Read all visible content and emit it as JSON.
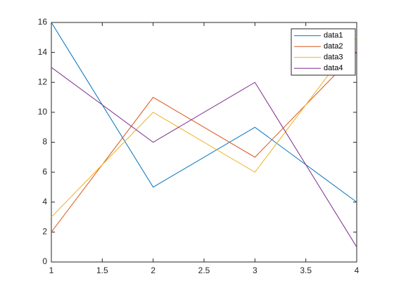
{
  "chart_data": {
    "type": "line",
    "x": [
      1,
      2,
      3,
      4
    ],
    "series": [
      {
        "name": "data1",
        "color": "#0072BD",
        "values": [
          16,
          5,
          9,
          4
        ]
      },
      {
        "name": "data2",
        "color": "#D95319",
        "values": [
          2,
          11,
          7,
          14
        ]
      },
      {
        "name": "data3",
        "color": "#EDB120",
        "values": [
          3,
          10,
          6,
          15
        ]
      },
      {
        "name": "data4",
        "color": "#7E2F8E",
        "values": [
          13,
          8,
          12,
          1
        ]
      }
    ],
    "xlim": [
      1,
      4
    ],
    "xticks": [
      1,
      1.5,
      2,
      2.5,
      3,
      3.5,
      4
    ],
    "ylim": [
      0,
      16
    ],
    "yticks": [
      0,
      2,
      4,
      6,
      8,
      10,
      12,
      14,
      16
    ],
    "grid": false,
    "legend": "upper-right"
  }
}
